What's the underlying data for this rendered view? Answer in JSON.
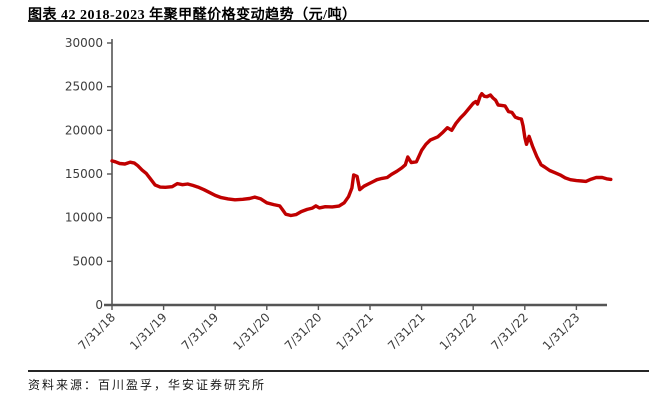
{
  "figure": {
    "title": "图表 42 2018-2023 年聚甲醛价格变动趋势（元/吨）",
    "source_note": "资料来源：百川盈孚，华安证券研究所"
  },
  "chart_data": {
    "type": "line",
    "title": "2018-2023 年聚甲醛价格变动趋势",
    "unit": "元/吨",
    "legend": "none",
    "grid": "off",
    "line_color": "#C00000",
    "axis_color": "#555555",
    "label_color": "#3d3d3d",
    "ylim": [
      0,
      30000
    ],
    "y_ticks": [
      0,
      5000,
      10000,
      15000,
      20000,
      25000,
      30000
    ],
    "x_tick_labels": [
      "7/31/18",
      "1/31/19",
      "7/31/19",
      "1/31/20",
      "7/31/20",
      "1/31/21",
      "7/31/21",
      "1/31/22",
      "7/31/22",
      "1/31/23"
    ],
    "x_months_per_tick": 6,
    "x_months_total": 58,
    "points_format": "[months_since_2018_07_31, price_cny_per_ton]",
    "points": [
      [
        0,
        16500
      ],
      [
        0.4,
        16400
      ],
      [
        0.9,
        16200
      ],
      [
        1.5,
        16150
      ],
      [
        2.1,
        16350
      ],
      [
        2.6,
        16250
      ],
      [
        3.0,
        15950
      ],
      [
        3.5,
        15450
      ],
      [
        4.0,
        15050
      ],
      [
        4.5,
        14400
      ],
      [
        5.0,
        13750
      ],
      [
        5.6,
        13500
      ],
      [
        6.2,
        13480
      ],
      [
        7.0,
        13550
      ],
      [
        7.6,
        13900
      ],
      [
        8.2,
        13780
      ],
      [
        8.8,
        13850
      ],
      [
        9.4,
        13700
      ],
      [
        10.0,
        13500
      ],
      [
        10.7,
        13200
      ],
      [
        11.3,
        12900
      ],
      [
        12.0,
        12550
      ],
      [
        12.7,
        12300
      ],
      [
        13.5,
        12150
      ],
      [
        14.3,
        12050
      ],
      [
        15.2,
        12100
      ],
      [
        16.0,
        12200
      ],
      [
        16.6,
        12350
      ],
      [
        17.3,
        12150
      ],
      [
        18.0,
        11700
      ],
      [
        18.8,
        11500
      ],
      [
        19.5,
        11350
      ],
      [
        19.8,
        10950
      ],
      [
        20.2,
        10400
      ],
      [
        20.8,
        10250
      ],
      [
        21.4,
        10350
      ],
      [
        22.0,
        10700
      ],
      [
        22.7,
        10950
      ],
      [
        23.3,
        11100
      ],
      [
        23.7,
        11350
      ],
      [
        24.1,
        11120
      ],
      [
        24.8,
        11260
      ],
      [
        25.6,
        11230
      ],
      [
        26.4,
        11320
      ],
      [
        27.0,
        11700
      ],
      [
        27.5,
        12400
      ],
      [
        27.9,
        13400
      ],
      [
        28.1,
        14900
      ],
      [
        28.5,
        14720
      ],
      [
        28.8,
        13200
      ],
      [
        29.3,
        13600
      ],
      [
        29.8,
        13850
      ],
      [
        30.3,
        14100
      ],
      [
        30.8,
        14350
      ],
      [
        31.4,
        14500
      ],
      [
        32.0,
        14600
      ],
      [
        32.5,
        14950
      ],
      [
        33.1,
        15300
      ],
      [
        33.7,
        15700
      ],
      [
        34.1,
        16050
      ],
      [
        34.4,
        16950
      ],
      [
        34.8,
        16300
      ],
      [
        35.4,
        16400
      ],
      [
        36.0,
        17700
      ],
      [
        36.5,
        18400
      ],
      [
        37.0,
        18880
      ],
      [
        37.9,
        19260
      ],
      [
        38.5,
        19800
      ],
      [
        39.0,
        20300
      ],
      [
        39.5,
        20000
      ],
      [
        40.0,
        20800
      ],
      [
        40.5,
        21400
      ],
      [
        41.0,
        21900
      ],
      [
        41.5,
        22500
      ],
      [
        42.0,
        23100
      ],
      [
        42.3,
        23300
      ],
      [
        42.5,
        23000
      ],
      [
        42.8,
        23900
      ],
      [
        43.0,
        24200
      ],
      [
        43.3,
        23900
      ],
      [
        43.6,
        23850
      ],
      [
        44.0,
        24050
      ],
      [
        44.3,
        23700
      ],
      [
        44.6,
        23450
      ],
      [
        44.9,
        22900
      ],
      [
        45.3,
        22850
      ],
      [
        45.7,
        22800
      ],
      [
        46.1,
        22150
      ],
      [
        46.5,
        22050
      ],
      [
        46.9,
        21500
      ],
      [
        47.3,
        21350
      ],
      [
        47.6,
        21300
      ],
      [
        47.8,
        20500
      ],
      [
        48.0,
        19200
      ],
      [
        48.2,
        18400
      ],
      [
        48.5,
        19300
      ],
      [
        48.9,
        18200
      ],
      [
        49.4,
        17000
      ],
      [
        49.9,
        16050
      ],
      [
        50.3,
        15800
      ],
      [
        50.9,
        15400
      ],
      [
        51.5,
        15150
      ],
      [
        52.1,
        14900
      ],
      [
        52.7,
        14550
      ],
      [
        53.3,
        14350
      ],
      [
        54.0,
        14250
      ],
      [
        54.6,
        14200
      ],
      [
        55.1,
        14150
      ],
      [
        55.7,
        14400
      ],
      [
        56.3,
        14600
      ],
      [
        57.0,
        14600
      ],
      [
        57.5,
        14450
      ],
      [
        58.0,
        14380
      ]
    ]
  }
}
